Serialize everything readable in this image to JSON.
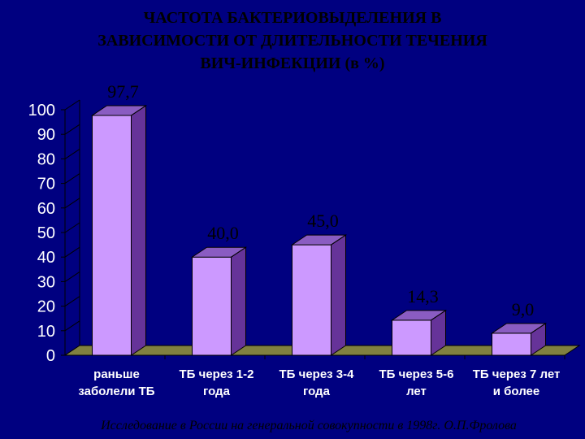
{
  "chart_data": {
    "type": "bar",
    "title": "ЧАСТОТА БАКТЕРИОВЫДЕЛЕНИЯ В\nЗАВИСИМОСТИ ОТ ДЛИТЕЛЬНОСТИ ТЕЧЕНИЯ\nВИЧ-ИНФЕКЦИИ (в %)",
    "categories": [
      [
        "раньше",
        "заболели ТБ"
      ],
      [
        "ТБ через 1-2",
        "года"
      ],
      [
        "ТБ через 3-4",
        "года"
      ],
      [
        "ТБ через 5-6",
        "лет"
      ],
      [
        "ТБ через 7 лет",
        "и более"
      ]
    ],
    "values": [
      97.7,
      40.0,
      45.0,
      14.3,
      9.0
    ],
    "data_labels": [
      "97,7",
      "40,0",
      "45,0",
      "14,3",
      "9,0"
    ],
    "ylim": [
      0,
      100
    ],
    "yticks": [
      0,
      10,
      20,
      30,
      40,
      50,
      60,
      70,
      80,
      90,
      100
    ],
    "grid": false,
    "xlabel": "",
    "ylabel": ""
  },
  "footnote": "Исследование в России на генеральной совокупности в 1998г. О.П.Фролова",
  "colors": {
    "background": "#000080",
    "bar_front": "#cc99ff",
    "bar_side": "#663399",
    "bar_top": "#8a5cc2",
    "axis": "#000000",
    "tick_text": "#ffffff",
    "title_text": "#000000"
  }
}
